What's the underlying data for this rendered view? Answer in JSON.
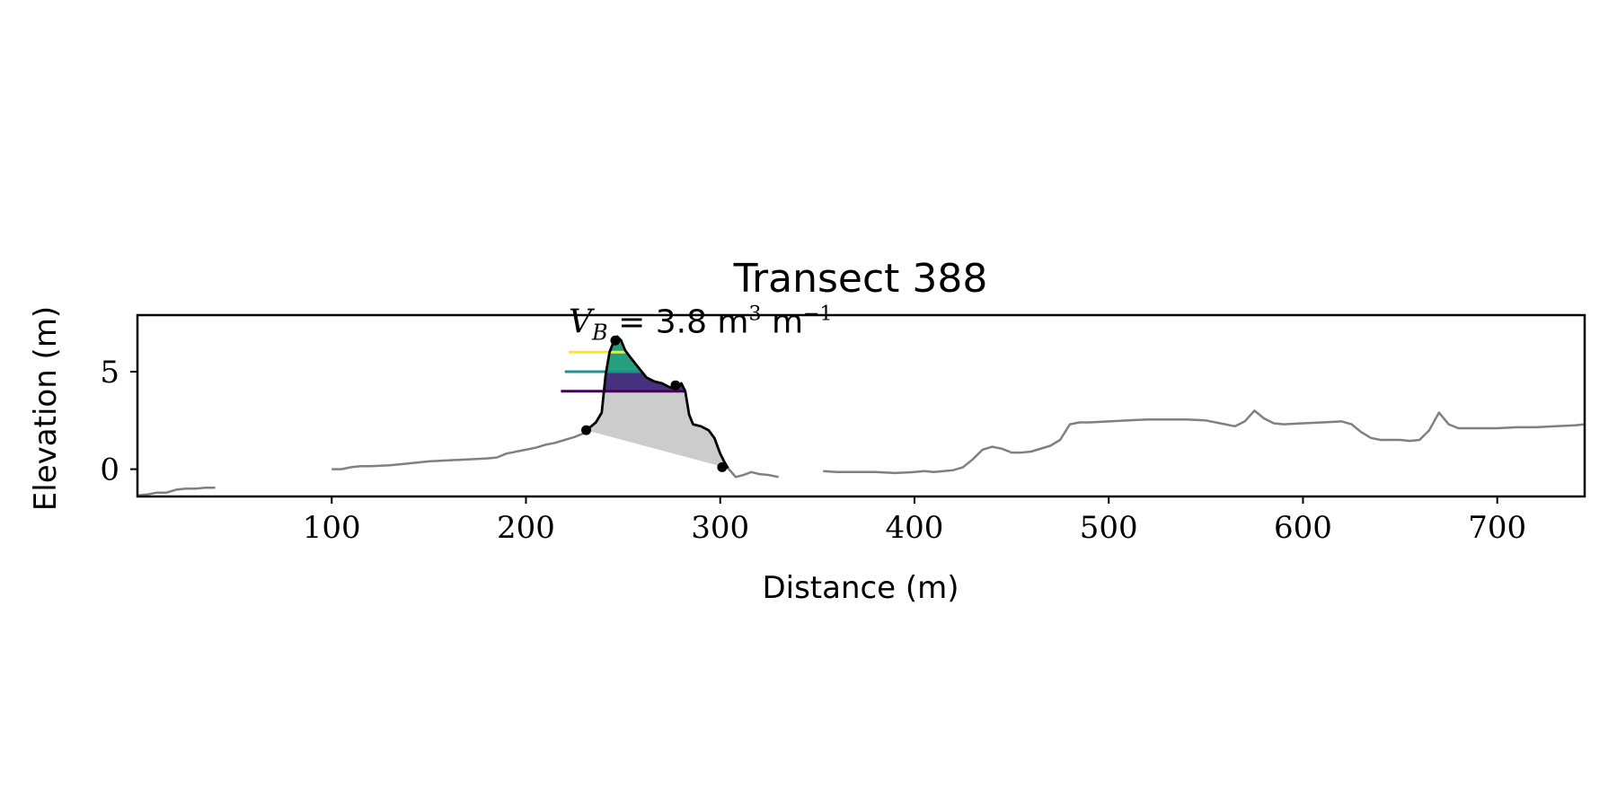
{
  "chart_data": {
    "type": "line",
    "title": "Transect 388",
    "xlabel": "Distance (m)",
    "ylabel": "Elevation (m)",
    "xlim": [
      0,
      745
    ],
    "ylim": [
      -1.4,
      7.9
    ],
    "xticks": [
      100,
      200,
      300,
      400,
      500,
      600,
      700
    ],
    "yticks": [
      0,
      5
    ],
    "grid": false,
    "colors": {
      "profile": "#808080",
      "dune": "#000000",
      "fill_below": "#cccccc",
      "band_high": "#fde725",
      "band_mid": "#21918c",
      "band_low": "#440154",
      "fill_mid": "#26a07c",
      "fill_low": "#46317e"
    },
    "annotation": {
      "label": "V",
      "subscript": "B",
      "value_text": " = 3.8 m",
      "exp1": "3",
      "unit2": " m",
      "exp2": "−1",
      "anchor": [
        222,
        7.0
      ]
    },
    "series": [
      {
        "role": "profile",
        "segments": [
          {
            "x": [
              0,
              5,
              10,
              15,
              20,
              25,
              30,
              35,
              40
            ],
            "y": [
              -1.35,
              -1.3,
              -1.2,
              -1.2,
              -1.05,
              -1.0,
              -1.0,
              -0.95,
              -0.95
            ]
          },
          {
            "x": [
              100,
              105,
              110,
              115,
              120,
              130,
              140,
              150,
              160,
              170,
              180,
              185,
              190,
              195,
              200,
              205,
              210,
              215,
              220,
              225,
              230,
              233
            ],
            "y": [
              0.0,
              0.0,
              0.1,
              0.15,
              0.15,
              0.2,
              0.3,
              0.4,
              0.45,
              0.5,
              0.55,
              0.6,
              0.8,
              0.9,
              1.0,
              1.1,
              1.25,
              1.35,
              1.5,
              1.65,
              1.85,
              2.0
            ]
          },
          {
            "x": [
              304,
              308,
              312,
              316,
              320,
              325,
              330
            ],
            "y": [
              0.05,
              -0.4,
              -0.3,
              -0.15,
              -0.25,
              -0.3,
              -0.4
            ]
          },
          {
            "x": [
              353,
              360,
              370,
              380,
              390,
              400,
              405,
              410,
              415,
              420,
              425,
              430,
              435,
              440,
              445,
              450,
              455,
              460,
              470,
              475,
              480,
              485,
              490,
              500,
              510,
              520,
              530,
              540,
              550,
              560,
              565,
              570,
              575,
              580,
              585,
              590,
              600,
              610,
              620,
              625,
              630,
              635,
              640,
              645,
              650,
              655,
              660,
              665,
              670,
              675,
              680,
              690,
              700,
              710,
              720,
              730,
              740,
              745
            ],
            "y": [
              -0.1,
              -0.15,
              -0.15,
              -0.15,
              -0.2,
              -0.15,
              -0.1,
              -0.15,
              -0.1,
              -0.05,
              0.1,
              0.5,
              1.0,
              1.15,
              1.05,
              0.85,
              0.85,
              0.9,
              1.2,
              1.5,
              2.3,
              2.4,
              2.4,
              2.45,
              2.5,
              2.55,
              2.55,
              2.55,
              2.5,
              2.3,
              2.2,
              2.45,
              3.0,
              2.6,
              2.35,
              2.3,
              2.35,
              2.4,
              2.45,
              2.3,
              1.9,
              1.6,
              1.5,
              1.5,
              1.5,
              1.45,
              1.5,
              2.0,
              2.9,
              2.3,
              2.1,
              2.1,
              2.1,
              2.15,
              2.15,
              2.2,
              2.25,
              2.3
            ]
          }
        ]
      },
      {
        "role": "dune",
        "x": [
          231,
          233,
          236,
          239,
          241,
          243,
          245,
          247,
          249,
          251,
          254,
          258,
          262,
          266,
          270,
          274,
          277,
          279,
          280,
          282,
          284,
          286,
          290,
          294,
          297,
          300,
          302,
          304
        ],
        "y": [
          2.0,
          2.15,
          2.4,
          2.9,
          4.8,
          6.0,
          6.5,
          6.8,
          6.6,
          6.1,
          5.7,
          5.2,
          4.7,
          4.5,
          4.4,
          4.2,
          4.15,
          4.25,
          4.4,
          4.0,
          2.8,
          2.3,
          2.2,
          2.0,
          1.6,
          0.8,
          0.4,
          0.05
        ]
      }
    ],
    "markers": [
      {
        "x": 231,
        "y": 2.0
      },
      {
        "x": 246,
        "y": 6.6
      },
      {
        "x": 277,
        "y": 4.3
      },
      {
        "x": 301,
        "y": 0.1
      }
    ],
    "levels": [
      {
        "y": 6.0,
        "x_start": 222,
        "color_key": "band_high"
      },
      {
        "y": 5.0,
        "x_start": 220,
        "color_key": "band_mid"
      },
      {
        "y": 4.0,
        "x_start": 218,
        "color_key": "band_low"
      }
    ],
    "fill_below_polygon": {
      "x": [
        231,
        233,
        236,
        239,
        241,
        243,
        245,
        247,
        249,
        251,
        254,
        258,
        262,
        266,
        270,
        274,
        277,
        279,
        280,
        282,
        284,
        286,
        290,
        294,
        297,
        300,
        302,
        304
      ],
      "base": [
        [
          231,
          2.0
        ],
        [
          304,
          0.05
        ]
      ]
    }
  }
}
